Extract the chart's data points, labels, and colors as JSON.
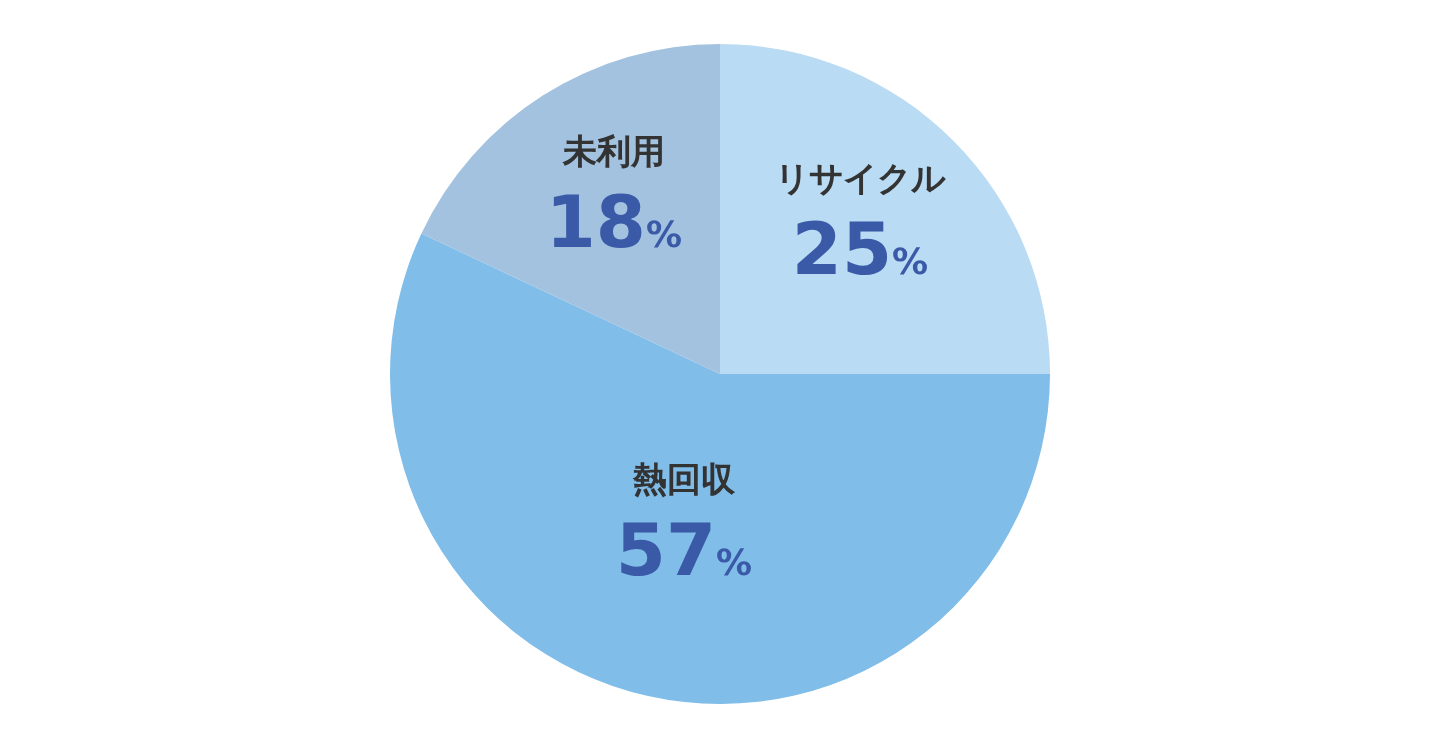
{
  "chart_data": {
    "type": "pie",
    "categories": [
      "リサイクル",
      "熱回収",
      "未利用"
    ],
    "values": [
      25,
      57,
      18
    ],
    "colors": [
      "#b9dbf3",
      "#80bde9",
      "#a2c2e0"
    ],
    "value_labels": [
      "25%",
      "57%",
      "18%"
    ]
  }
}
